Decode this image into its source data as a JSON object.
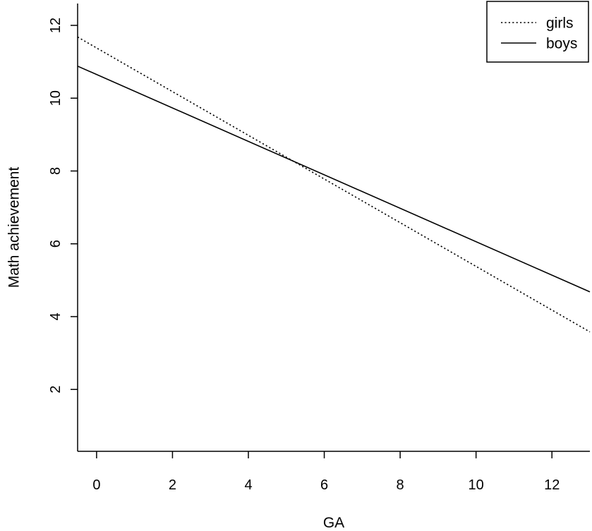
{
  "chart_data": {
    "type": "line",
    "title": "",
    "xlabel": "GA",
    "ylabel": "Math achievement",
    "xlim": [
      -0.5,
      13
    ],
    "ylim": [
      0.3,
      12.6
    ],
    "xticks": [
      0,
      2,
      4,
      6,
      8,
      10,
      12
    ],
    "yticks": [
      2,
      4,
      6,
      8,
      10,
      12
    ],
    "grid": false,
    "legend_position": "top-right",
    "series": [
      {
        "name": "girls",
        "line_style": "dotted",
        "color": "#000000",
        "x": [
          -0.5,
          13
        ],
        "y": [
          11.68,
          3.58
        ]
      },
      {
        "name": "boys",
        "line_style": "solid",
        "color": "#000000",
        "x": [
          -0.5,
          13
        ],
        "y": [
          10.88,
          4.68
        ]
      }
    ]
  }
}
